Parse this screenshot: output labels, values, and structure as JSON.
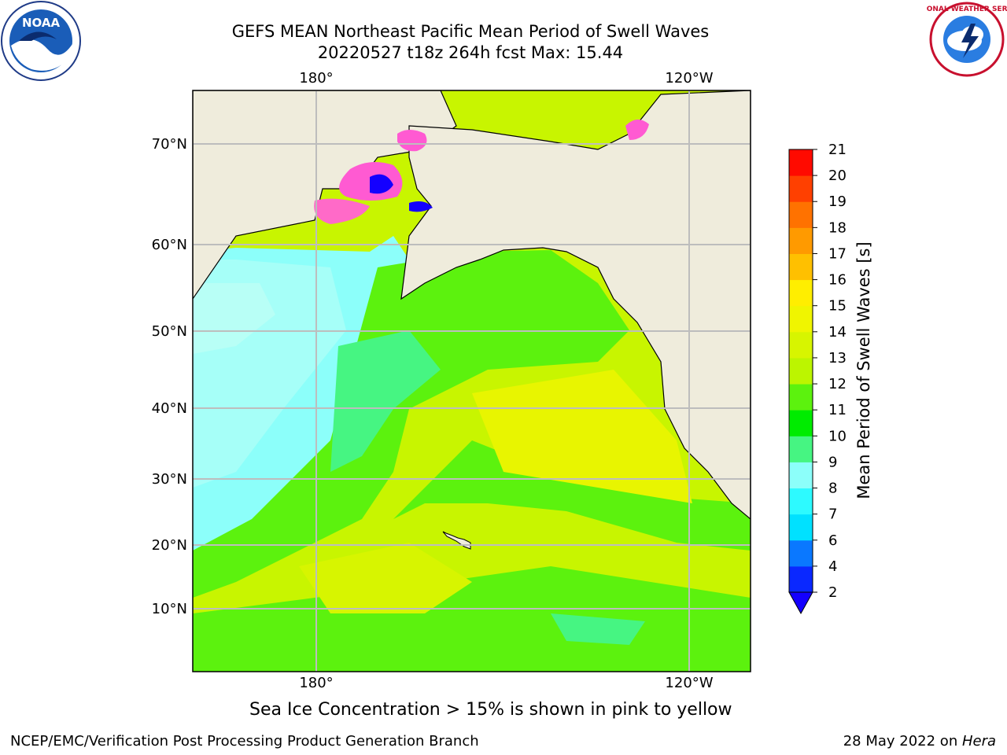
{
  "header": {
    "title_line1": "GEFS MEAN Northeast Pacific Mean Period of Swell Waves",
    "title_line2": "20220527 t18z 264h fcst   Max: 15.44"
  },
  "map": {
    "lon_labels_top": [
      "180°",
      "120°W"
    ],
    "lon_labels_bottom": [
      "180°",
      "120°W"
    ],
    "lat_labels": [
      "70°N",
      "60°N",
      "50°N",
      "40°N",
      "30°N",
      "20°N",
      "10°N"
    ],
    "land_color": "#efecdc",
    "grid_color": "#bdbdbd"
  },
  "colorbar": {
    "label": "Mean Period of Swell Waves [s]",
    "ticks": [
      "2",
      "4",
      "6",
      "7",
      "8",
      "9",
      "10",
      "11",
      "12",
      "13",
      "14",
      "15",
      "16",
      "17",
      "18",
      "19",
      "20",
      "21"
    ],
    "colors": [
      "#0a28ff",
      "#0a78ff",
      "#00e1ff",
      "#2dfaff",
      "#8cfffa",
      "#46f582",
      "#00ec00",
      "#5cf20e",
      "#bcf500",
      "#d7f500",
      "#f0f500",
      "#ffee00",
      "#ffc000",
      "#ff9a00",
      "#ff7200",
      "#ff4000",
      "#ff0a00"
    ],
    "under_color": "#1400ff"
  },
  "caption": "Sea Ice Concentration > 15% is shown in pink to yellow",
  "footer": {
    "left": "NCEP/EMC/Verification Post Processing Product Generation Branch",
    "right_date": "28 May 2022 on ",
    "right_host": "Hera"
  },
  "logos": {
    "noaa_text": "NOAA",
    "nws_text": "NATIONAL WEATHER SERVICE"
  }
}
